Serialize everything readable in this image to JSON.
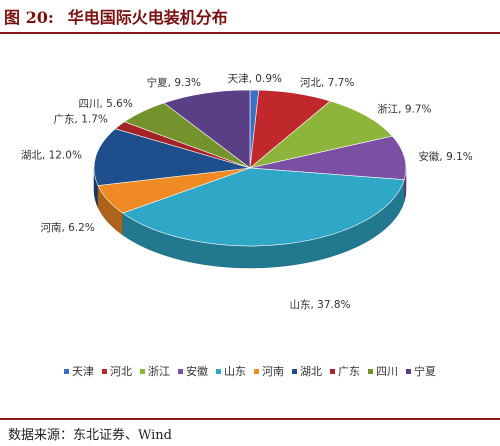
{
  "figure": {
    "label": "图 20:",
    "title": "华电国际火电装机分布"
  },
  "source": "数据来源：东北证券、Wind",
  "chart_data": {
    "type": "pie",
    "style": "3d",
    "title": "",
    "categories": [
      "天津",
      "河北",
      "浙江",
      "安徽",
      "山东",
      "河南",
      "湖北",
      "广东",
      "四川",
      "宁夏"
    ],
    "values": [
      0.9,
      7.7,
      9.7,
      9.1,
      37.8,
      6.2,
      12.0,
      1.7,
      5.6,
      9.3
    ],
    "labels": [
      "天津, 0.9%",
      "河北, 7.7%",
      "浙江, 9.7%",
      "安徽, 9.1%",
      "山东, 37.8%",
      "河南, 6.2%",
      "湖北, 12.0%",
      "广东, 1.7%",
      "四川, 5.6%",
      "宁夏, 9.3%"
    ],
    "unit": "%",
    "colors": [
      "#3a6fc4",
      "#c0282b",
      "#8db43b",
      "#7b4fa3",
      "#2fa8c7",
      "#f08a24",
      "#1f4e8c",
      "#a52326",
      "#74932c",
      "#5b3f86"
    ],
    "legend": {
      "position": "bottom"
    }
  }
}
